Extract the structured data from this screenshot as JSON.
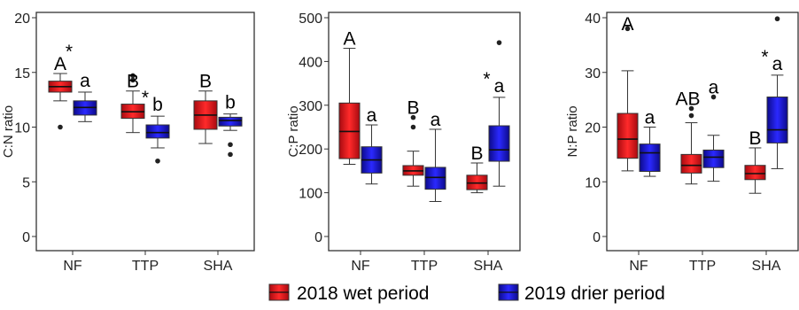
{
  "chart_data": [
    {
      "type": "box",
      "ylabel": "C:N ratio",
      "ylim": [
        0,
        20
      ],
      "yticks": [
        0,
        5,
        10,
        15,
        20
      ],
      "categories": [
        "NF",
        "TTP",
        "SHA"
      ],
      "series": [
        {
          "name": "2018 wet period",
          "color": "#e8141b",
          "boxes": [
            {
              "whislo": 12.4,
              "q1": 13.2,
              "med": 13.7,
              "q3": 14.2,
              "whishi": 14.9,
              "fliers": [
                10.0
              ]
            },
            {
              "whislo": 9.5,
              "q1": 10.8,
              "med": 11.4,
              "q3": 12.1,
              "whishi": 13.3,
              "fliers": [
                14.3,
                14.7
              ]
            },
            {
              "whislo": 8.5,
              "q1": 9.8,
              "med": 11.1,
              "q3": 12.4,
              "whishi": 13.3,
              "fliers": []
            }
          ]
        },
        {
          "name": "2019 drier period",
          "color": "#1a14e0",
          "boxes": [
            {
              "whislo": 10.5,
              "q1": 11.1,
              "med": 11.8,
              "q3": 12.4,
              "whishi": 13.2,
              "fliers": []
            },
            {
              "whislo": 8.1,
              "q1": 9.0,
              "med": 9.5,
              "q3": 10.2,
              "whishi": 11.0,
              "fliers": [
                6.9
              ]
            },
            {
              "whislo": 9.7,
              "q1": 10.1,
              "med": 10.6,
              "q3": 10.9,
              "whishi": 11.2,
              "fliers": [
                8.4,
                7.5
              ]
            }
          ]
        }
      ],
      "letters_wet": [
        "A",
        "B",
        "B"
      ],
      "letters_dry": [
        "a",
        "b",
        "b"
      ],
      "stars": [
        "*",
        "*",
        ""
      ]
    },
    {
      "type": "box",
      "ylabel": "C:P ratio",
      "ylim": [
        0,
        500
      ],
      "yticks": [
        0,
        100,
        200,
        300,
        400,
        500
      ],
      "categories": [
        "NF",
        "TTP",
        "SHA"
      ],
      "series": [
        {
          "name": "2018 wet period",
          "color": "#e8141b",
          "boxes": [
            {
              "whislo": 165,
              "q1": 178,
              "med": 240,
              "q3": 305,
              "whishi": 430,
              "fliers": []
            },
            {
              "whislo": 115,
              "q1": 140,
              "med": 150,
              "q3": 162,
              "whishi": 195,
              "fliers": [
                250,
                272
              ]
            },
            {
              "whislo": 100,
              "q1": 107,
              "med": 122,
              "q3": 140,
              "whishi": 168,
              "fliers": []
            }
          ]
        },
        {
          "name": "2019 drier period",
          "color": "#1a14e0",
          "boxes": [
            {
              "whislo": 120,
              "q1": 145,
              "med": 175,
              "q3": 205,
              "whishi": 255,
              "fliers": []
            },
            {
              "whislo": 80,
              "q1": 108,
              "med": 135,
              "q3": 158,
              "whishi": 245,
              "fliers": []
            },
            {
              "whislo": 115,
              "q1": 172,
              "med": 198,
              "q3": 253,
              "whishi": 318,
              "fliers": [
                443
              ]
            }
          ]
        }
      ],
      "letters_wet": [
        "A",
        "B",
        "B"
      ],
      "letters_dry": [
        "a",
        "a",
        "a"
      ],
      "stars": [
        "",
        "",
        "*"
      ]
    },
    {
      "type": "box",
      "ylabel": "N:P ratio",
      "ylim": [
        0,
        40
      ],
      "yticks": [
        0,
        10,
        20,
        30,
        40
      ],
      "categories": [
        "NF",
        "TTP",
        "SHA"
      ],
      "series": [
        {
          "name": "2018 wet period",
          "color": "#e8141b",
          "boxes": [
            {
              "whislo": 12.0,
              "q1": 14.3,
              "med": 17.8,
              "q3": 22.5,
              "whishi": 30.3,
              "fliers": [
                38.0
              ]
            },
            {
              "whislo": 9.6,
              "q1": 11.6,
              "med": 13.0,
              "q3": 15.0,
              "whishi": 20.8,
              "fliers": [
                22.1,
                23.4
              ]
            },
            {
              "whislo": 7.9,
              "q1": 10.4,
              "med": 11.5,
              "q3": 13.0,
              "whishi": 16.2,
              "fliers": []
            }
          ]
        },
        {
          "name": "2019 drier period",
          "color": "#1a14e0",
          "boxes": [
            {
              "whislo": 11.0,
              "q1": 11.9,
              "med": 15.3,
              "q3": 16.9,
              "whishi": 20.0,
              "fliers": []
            },
            {
              "whislo": 10.1,
              "q1": 12.6,
              "med": 14.5,
              "q3": 15.8,
              "whishi": 18.5,
              "fliers": [
                25.5
              ]
            },
            {
              "whislo": 12.4,
              "q1": 17.1,
              "med": 19.5,
              "q3": 25.5,
              "whishi": 29.5,
              "fliers": [
                39.8
              ]
            }
          ]
        }
      ],
      "letters_wet": [
        "A",
        "AB",
        "B"
      ],
      "letters_dry": [
        "a",
        "a",
        "a"
      ],
      "stars": [
        "",
        "",
        "*"
      ]
    }
  ],
  "legend": {
    "items": [
      {
        "label": "2018 wet period",
        "color": "#e8141b"
      },
      {
        "label": "2019 drier period",
        "color": "#1a14e0"
      }
    ]
  }
}
